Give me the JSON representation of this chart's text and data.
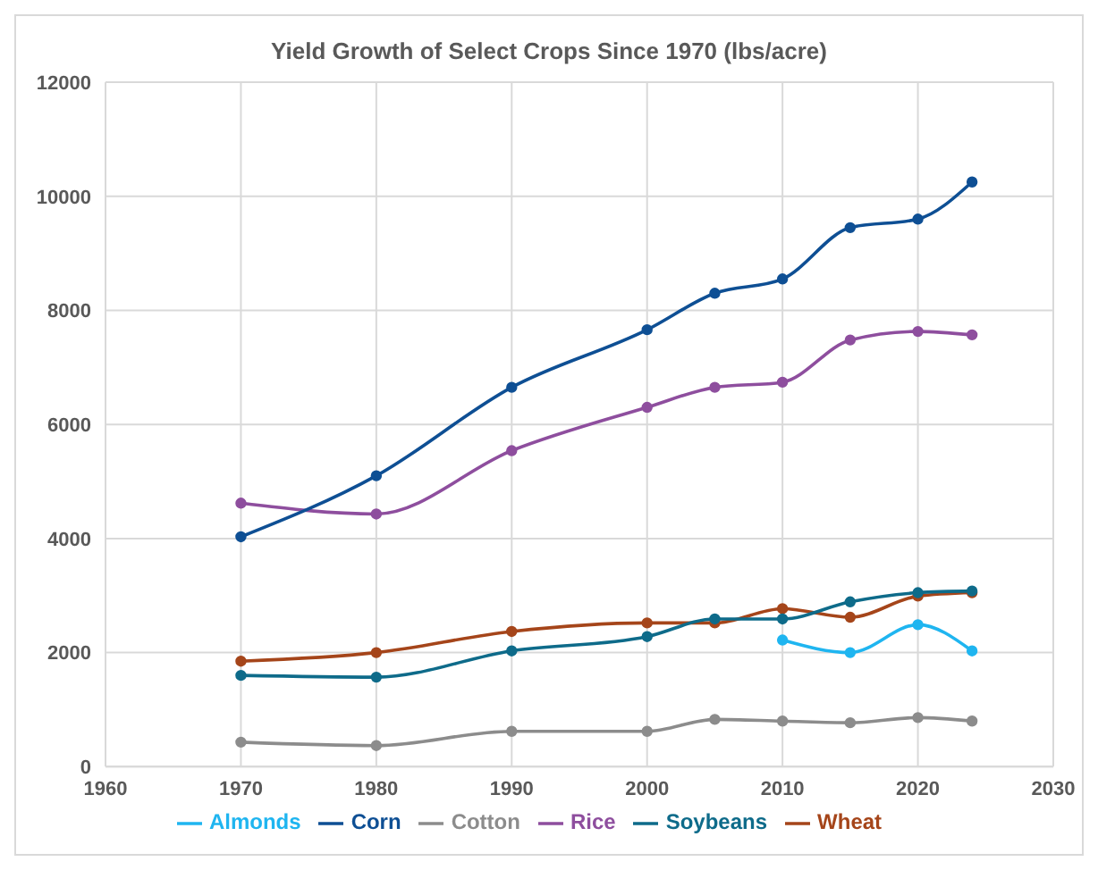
{
  "chart_data": {
    "type": "line",
    "title": "Yield Growth of Select Crops Since 1970 (lbs/acre)",
    "series": [
      {
        "name": "Almonds",
        "color": "#1fb5f0",
        "x": [
          2010,
          2015,
          2020,
          2024
        ],
        "values": [
          2220,
          2000,
          2490,
          2030
        ]
      },
      {
        "name": "Corn",
        "color": "#0e4f94",
        "x": [
          1970,
          1980,
          1990,
          2000,
          2005,
          2010,
          2015,
          2020,
          2024
        ],
        "values": [
          4030,
          5100,
          6650,
          7660,
          8300,
          8550,
          9450,
          9600,
          10250
        ]
      },
      {
        "name": "Cotton",
        "color": "#8c8c8c",
        "x": [
          1970,
          1980,
          1990,
          2000,
          2005,
          2010,
          2015,
          2020,
          2024
        ],
        "values": [
          430,
          370,
          620,
          620,
          830,
          800,
          770,
          860,
          800
        ]
      },
      {
        "name": "Rice",
        "color": "#8e4e9e",
        "x": [
          1970,
          1980,
          1990,
          2000,
          2005,
          2010,
          2015,
          2020,
          2024
        ],
        "values": [
          4620,
          4430,
          5540,
          6300,
          6650,
          6740,
          7480,
          7630,
          7570
        ]
      },
      {
        "name": "Soybeans",
        "color": "#0e6b8a",
        "x": [
          1970,
          1980,
          1990,
          2000,
          2005,
          2010,
          2015,
          2020,
          2024
        ],
        "values": [
          1600,
          1570,
          2030,
          2280,
          2590,
          2590,
          2890,
          3050,
          3080
        ]
      },
      {
        "name": "Wheat",
        "color": "#a5451a",
        "x": [
          1970,
          1980,
          1990,
          2000,
          2005,
          2010,
          2015,
          2020,
          2024
        ],
        "values": [
          1850,
          2000,
          2370,
          2520,
          2520,
          2770,
          2620,
          2990,
          3050
        ]
      }
    ],
    "xlim": [
      1960,
      2030
    ],
    "xticks": [
      1960,
      1970,
      1980,
      1990,
      2000,
      2010,
      2020,
      2030
    ],
    "ylim": [
      0,
      12000
    ],
    "yticks": [
      0,
      2000,
      4000,
      6000,
      8000,
      10000,
      12000
    ],
    "grid": true,
    "legend": "bottom",
    "marker": "circle",
    "line_style": "solid"
  }
}
